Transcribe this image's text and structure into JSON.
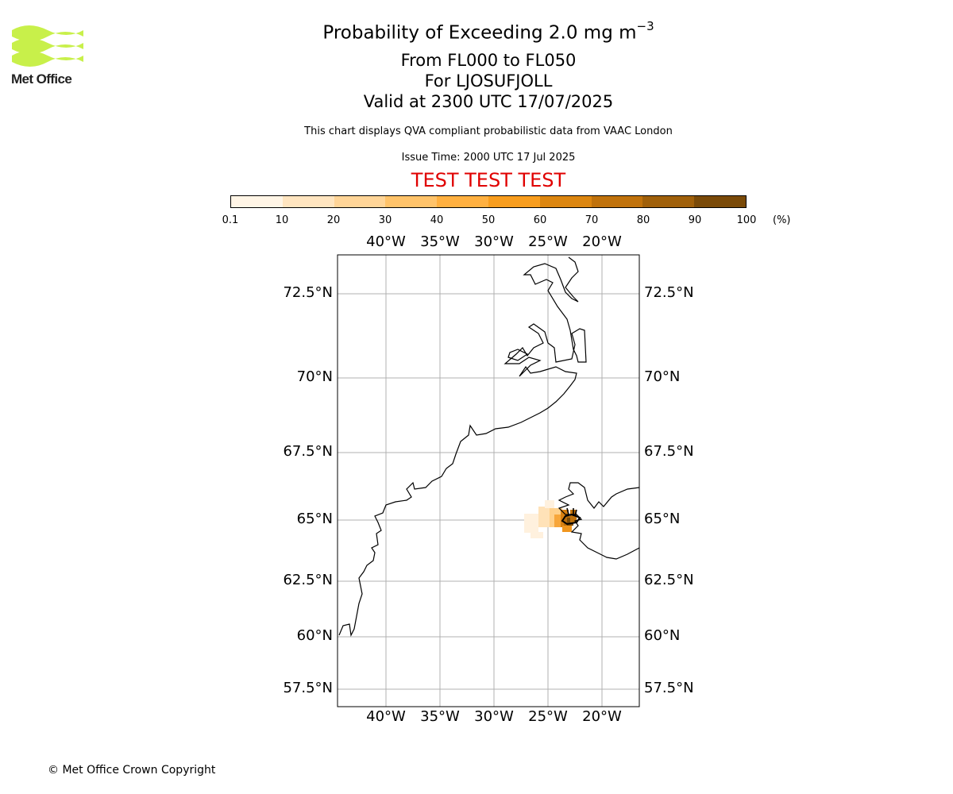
{
  "logo": {
    "text": "Met Office"
  },
  "title": {
    "main_prefix": "Probability of Exceeding 2.0 mg m",
    "main_superscript": "−3",
    "flight_levels": "From FL000 to FL050",
    "location": "For LJOSUFJOLL",
    "valid": "Valid at 2300 UTC 17/07/2025"
  },
  "notes": {
    "qva": "This chart displays QVA compliant probabilistic data from VAAC London",
    "issue": "Issue Time: 2000 UTC 17 Jul 2025",
    "banner": "TEST TEST TEST"
  },
  "colorbar": {
    "ticks": [
      "0.1",
      "10",
      "20",
      "30",
      "40",
      "50",
      "60",
      "70",
      "80",
      "90",
      "100"
    ],
    "unit": "(%)",
    "colors": [
      "#fff5e6",
      "#ffe5c0",
      "#ffd598",
      "#ffc36a",
      "#ffb040",
      "#f89d1e",
      "#dc8610",
      "#c0720c",
      "#a0600a",
      "#7a4a08",
      "#5a3a08"
    ]
  },
  "map": {
    "lon_labels": [
      "40°W",
      "35°W",
      "30°W",
      "25°W",
      "20°W"
    ],
    "lon_values": [
      -40,
      -35,
      -30,
      -25,
      -20
    ],
    "lat_labels": [
      "72.5°N",
      "70°N",
      "67.5°N",
      "65°N",
      "62.5°N",
      "60°N",
      "57.5°N"
    ],
    "lat_values": [
      72.5,
      70,
      67.5,
      65,
      62.5,
      60,
      57.5
    ],
    "grid_color": "#b0b0b0",
    "coast_color": "#000000"
  },
  "footer": {
    "copyright": "© Met Office Crown Copyright"
  }
}
